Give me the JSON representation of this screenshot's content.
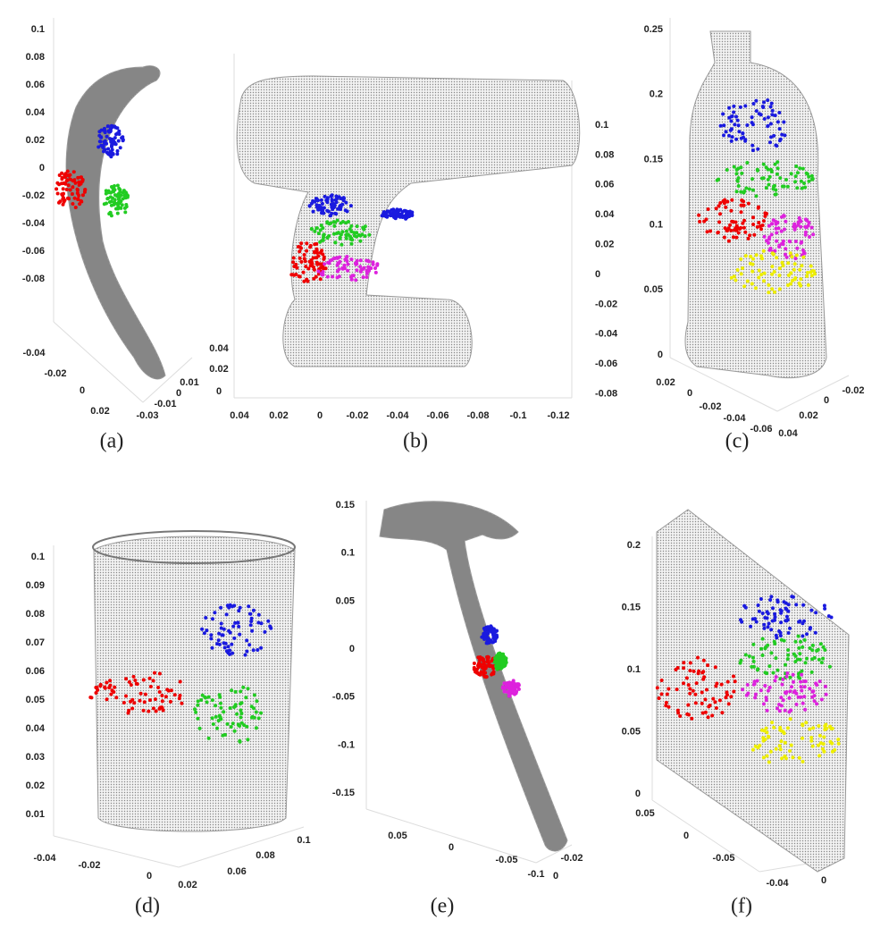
{
  "panels": [
    {
      "caption": "(a)",
      "zticks": [
        "0.1",
        "0.08",
        "0.06",
        "0.04",
        "0.02",
        "0",
        "-0.02",
        "-0.04",
        "-0.06",
        "-0.08"
      ],
      "xticks": [
        "-0.04",
        "-0.02",
        "0",
        "0.02"
      ],
      "yticks": [
        "-0.03",
        "-0.01",
        "0",
        "0.01"
      ]
    },
    {
      "caption": "(b)",
      "zticks": [
        "0.1",
        "0.08",
        "0.06",
        "0.04",
        "0.02",
        "0",
        "-0.02",
        "-0.04",
        "-0.06",
        "-0.08"
      ],
      "yticks": [
        "0.04",
        "0.02",
        "0"
      ],
      "xticks": [
        "0.04",
        "0.02",
        "0",
        "-0.02",
        "-0.04",
        "-0.06",
        "-0.08",
        "-0.1",
        "-0.12"
      ]
    },
    {
      "caption": "(c)",
      "zticks": [
        "0.25",
        "0.2",
        "0.15",
        "0.1",
        "0.05",
        "0"
      ],
      "xticks": [
        "0.02",
        "0",
        "-0.02",
        "-0.04",
        "-0.06"
      ],
      "yticks": [
        "0.04",
        "0.02",
        "0",
        "-0.02"
      ]
    },
    {
      "caption": "(d)",
      "zticks": [
        "0.1",
        "0.09",
        "0.08",
        "0.07",
        "0.06",
        "0.05",
        "0.04",
        "0.03",
        "0.02",
        "0.01"
      ],
      "xticks": [
        "-0.04",
        "-0.02",
        "0",
        "0.02"
      ],
      "yticks": [
        "0.06",
        "0.08",
        "0.1"
      ]
    },
    {
      "caption": "(e)",
      "zticks": [
        "0.15",
        "0.1",
        "0.05",
        "0",
        "-0.05",
        "-0.1",
        "-0.15"
      ],
      "xticks": [
        "0.05",
        "0",
        "-0.05",
        "-0.1"
      ],
      "yticks": [
        "0",
        "-0.02"
      ]
    },
    {
      "caption": "(f)",
      "zticks": [
        "0.2",
        "0.15",
        "0.1",
        "0.05",
        "0"
      ],
      "xticks": [
        "0.05",
        "0",
        "-0.05"
      ],
      "yticks": [
        "-0.04",
        "0"
      ]
    }
  ]
}
